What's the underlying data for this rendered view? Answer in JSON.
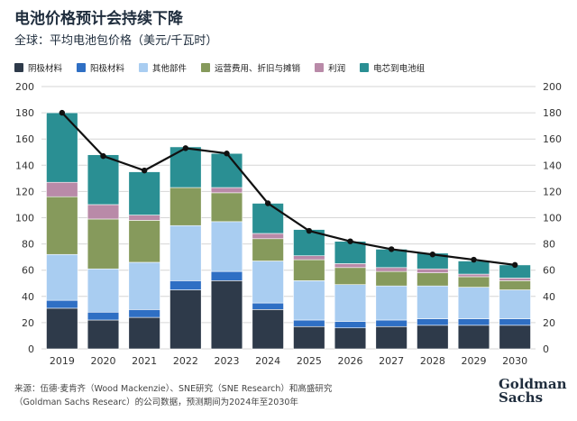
{
  "title": "电池价格预计会持续下降",
  "subtitle": "全球：平均电池包价格（美元/千瓦时）",
  "footnote": {
    "line1": "来源：伍德·麦肯齐（Wood Mackenzie）、SNE研究（SNE Research）和高盛研究",
    "line2": "（Goldman Sachs Researc）的公司数据，预测期间为2024年至2030年"
  },
  "logo": {
    "line1": "Goldman",
    "line2": "Sachs"
  },
  "colors": {
    "cathode": "#2e3a4a",
    "anode": "#2f6fc4",
    "other": "#a9cdf1",
    "operating": "#869a5c",
    "profit": "#b98aa8",
    "cell_to_pack": "#2a8f93",
    "line": "#111111",
    "grid": "#d6d6d6"
  },
  "chart_data": {
    "type": "bar",
    "stacked": true,
    "categories": [
      "2019",
      "2020",
      "2021",
      "2022",
      "2023",
      "2024",
      "2025",
      "2026",
      "2027",
      "2028",
      "2029",
      "2030"
    ],
    "series": [
      {
        "name": "阴极材料",
        "color_key": "cathode",
        "values": [
          31,
          22,
          24,
          45,
          52,
          30,
          17,
          16,
          17,
          18,
          18,
          18
        ]
      },
      {
        "name": "阳极材料",
        "color_key": "anode",
        "values": [
          6,
          6,
          6,
          7,
          7,
          5,
          5,
          5,
          5,
          5,
          5,
          5
        ]
      },
      {
        "name": "其他部件",
        "color_key": "other",
        "values": [
          35,
          33,
          36,
          42,
          38,
          32,
          30,
          28,
          26,
          25,
          24,
          22
        ]
      },
      {
        "name": "运营费用、折旧与摊销",
        "color_key": "operating",
        "values": [
          44,
          38,
          32,
          29,
          22,
          17,
          16,
          13,
          11,
          10,
          8,
          7
        ]
      },
      {
        "name": "利润",
        "color_key": "profit",
        "values": [
          11,
          11,
          4,
          0,
          4,
          4,
          3,
          3,
          3,
          3,
          2,
          2
        ]
      },
      {
        "name": "电芯到电池组",
        "color_key": "cell_to_pack",
        "values": [
          53,
          38,
          33,
          31,
          26,
          23,
          20,
          17,
          14,
          12,
          10,
          10
        ]
      }
    ],
    "total_line": [
      180,
      147,
      136,
      153,
      149,
      111,
      90,
      82,
      76,
      72,
      68,
      64
    ],
    "ylim": [
      0,
      200
    ],
    "yticks": [
      0,
      20,
      40,
      60,
      80,
      100,
      120,
      140,
      160,
      180,
      200
    ],
    "grid": true,
    "legend_position": "top"
  }
}
